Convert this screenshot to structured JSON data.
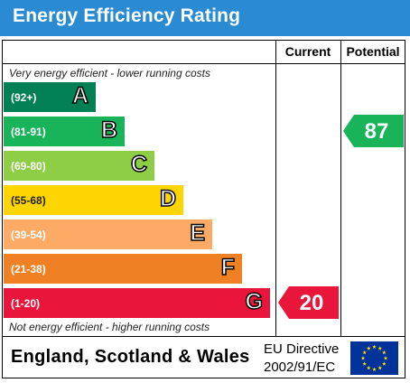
{
  "header": {
    "title": "Energy Efficiency Rating"
  },
  "columns": {
    "current": "Current",
    "potential": "Potential"
  },
  "notes": {
    "top": "Very energy efficient - lower running costs",
    "bottom": "Not energy efficient - higher running costs"
  },
  "footer": {
    "country": "England, Scotland & Wales",
    "directive_line1": "EU Directive",
    "directive_line2": "2002/91/EC",
    "flag_icon": "eu-flag-icon"
  },
  "chart_data": {
    "type": "bar",
    "categories": [
      "A",
      "B",
      "C",
      "D",
      "E",
      "F",
      "G"
    ],
    "bands": [
      {
        "letter": "A",
        "range": "(92+)",
        "color": "#008054"
      },
      {
        "letter": "B",
        "range": "(81-91)",
        "color": "#19b459"
      },
      {
        "letter": "C",
        "range": "(69-80)",
        "color": "#8dce46"
      },
      {
        "letter": "D",
        "range": "(55-68)",
        "color": "#ffd500"
      },
      {
        "letter": "E",
        "range": "(39-54)",
        "color": "#fcaa65"
      },
      {
        "letter": "F",
        "range": "(21-38)",
        "color": "#ef8023"
      },
      {
        "letter": "G",
        "range": "(1-20)",
        "color": "#e9153b"
      }
    ],
    "current": {
      "value": 20,
      "band": "G",
      "color": "#e9153b"
    },
    "potential": {
      "value": 87,
      "band": "B",
      "color": "#19b459"
    }
  }
}
